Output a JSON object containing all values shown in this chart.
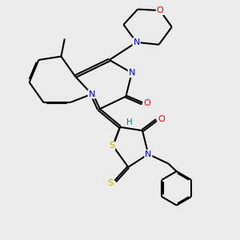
{
  "background_color": "#ebebeb",
  "bond_color": "#000000",
  "atom_colors": {
    "N": "#0000ff",
    "O": "#ff0000",
    "S": "#ccaa00",
    "H": "#008080",
    "C": "#000000"
  },
  "figsize": [
    3.0,
    3.0
  ],
  "dpi": 100,
  "xlim": [
    0,
    10
  ],
  "ylim": [
    0,
    10
  ]
}
